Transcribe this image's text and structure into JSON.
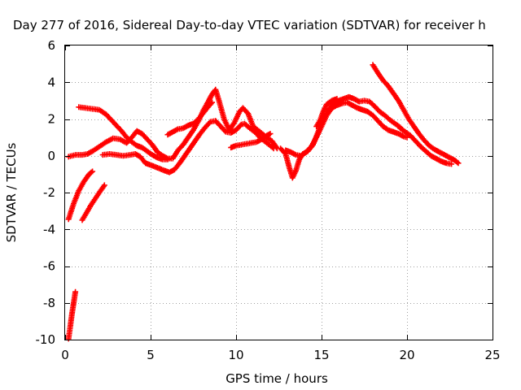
{
  "chart_data": {
    "type": "scatter",
    "title": "Day 277 of 2016, Sidereal Day-to-day VTEC variation (SDTVAR) for receiver h",
    "xlabel": "GPS time / hours",
    "ylabel": "SDTVAR / TECUs",
    "xlim": [
      0,
      25
    ],
    "ylim": [
      -10,
      6
    ],
    "xticks": [
      0,
      5,
      10,
      15,
      20,
      25
    ],
    "yticks": [
      -10,
      -8,
      -6,
      -4,
      -2,
      0,
      2,
      4,
      6
    ],
    "grid": true,
    "legend": "none",
    "marker": "+",
    "series": [
      {
        "name": "trace-1",
        "color": "#ff0000",
        "points": [
          [
            0.2,
            -9.95
          ],
          [
            0.3,
            -9.3
          ],
          [
            0.4,
            -8.6
          ],
          [
            0.5,
            -8.0
          ],
          [
            0.6,
            -7.4
          ]
        ]
      },
      {
        "name": "trace-2",
        "color": "#ff0000",
        "points": [
          [
            0.2,
            -3.45
          ],
          [
            0.5,
            -2.6
          ],
          [
            0.8,
            -1.9
          ],
          [
            1.1,
            -1.4
          ],
          [
            1.4,
            -1.0
          ],
          [
            1.6,
            -0.85
          ]
        ]
      },
      {
        "name": "trace-3",
        "color": "#ff0000",
        "points": [
          [
            1.0,
            -3.5
          ],
          [
            1.5,
            -2.7
          ],
          [
            2.0,
            -2.0
          ],
          [
            2.3,
            -1.6
          ]
        ]
      },
      {
        "name": "trace-4",
        "color": "#ff0000",
        "points": [
          [
            0.2,
            -0.05
          ],
          [
            0.6,
            0.05
          ],
          [
            1.0,
            0.05
          ],
          [
            1.3,
            0.1
          ],
          [
            1.6,
            0.25
          ],
          [
            2.0,
            0.5
          ],
          [
            2.4,
            0.75
          ],
          [
            2.8,
            0.95
          ],
          [
            3.2,
            0.9
          ],
          [
            3.6,
            0.7
          ],
          [
            3.9,
            1.0
          ],
          [
            4.2,
            1.35
          ],
          [
            4.5,
            1.2
          ],
          [
            4.8,
            0.9
          ],
          [
            5.1,
            0.6
          ],
          [
            5.4,
            0.2
          ],
          [
            5.7,
            0.0
          ],
          [
            6.0,
            -0.15
          ],
          [
            6.3,
            -0.15
          ],
          [
            6.6,
            0.3
          ],
          [
            6.9,
            0.6
          ],
          [
            7.2,
            1.0
          ],
          [
            7.5,
            1.4
          ],
          [
            7.8,
            1.9
          ],
          [
            8.1,
            2.5
          ],
          [
            8.4,
            3.0
          ],
          [
            8.6,
            3.35
          ],
          [
            8.8,
            3.6
          ],
          [
            9.0,
            3.0
          ],
          [
            9.3,
            2.0
          ],
          [
            9.6,
            1.4
          ],
          [
            9.9,
            1.8
          ],
          [
            10.2,
            2.4
          ],
          [
            10.4,
            2.6
          ],
          [
            10.7,
            2.3
          ],
          [
            11.0,
            1.6
          ],
          [
            11.4,
            1.3
          ],
          [
            11.8,
            1.0
          ],
          [
            12.1,
            0.8
          ],
          [
            12.4,
            0.4
          ]
        ]
      },
      {
        "name": "trace-5",
        "color": "#ff0000",
        "points": [
          [
            0.8,
            2.65
          ],
          [
            1.2,
            2.6
          ],
          [
            1.6,
            2.55
          ],
          [
            2.0,
            2.5
          ],
          [
            2.4,
            2.25
          ],
          [
            2.7,
            1.95
          ],
          [
            3.0,
            1.65
          ],
          [
            3.3,
            1.35
          ],
          [
            3.6,
            1.0
          ],
          [
            3.9,
            0.75
          ],
          [
            4.2,
            0.55
          ],
          [
            4.5,
            0.45
          ],
          [
            4.8,
            0.25
          ],
          [
            5.1,
            0.05
          ],
          [
            5.4,
            -0.1
          ],
          [
            5.7,
            -0.2
          ],
          [
            6.0,
            -0.2
          ]
        ]
      },
      {
        "name": "trace-6",
        "color": "#ff0000",
        "points": [
          [
            2.2,
            0.05
          ],
          [
            2.6,
            0.1
          ],
          [
            3.0,
            0.05
          ],
          [
            3.4,
            0.0
          ],
          [
            3.8,
            0.05
          ],
          [
            4.1,
            0.1
          ],
          [
            4.4,
            -0.05
          ],
          [
            4.7,
            -0.4
          ],
          [
            5.0,
            -0.5
          ],
          [
            5.4,
            -0.65
          ],
          [
            5.8,
            -0.8
          ],
          [
            6.1,
            -0.9
          ],
          [
            6.4,
            -0.75
          ],
          [
            6.7,
            -0.4
          ],
          [
            7.0,
            0.0
          ],
          [
            7.3,
            0.4
          ],
          [
            7.6,
            0.8
          ],
          [
            7.9,
            1.2
          ],
          [
            8.2,
            1.55
          ],
          [
            8.5,
            1.85
          ],
          [
            8.8,
            1.9
          ],
          [
            9.1,
            1.6
          ],
          [
            9.4,
            1.3
          ],
          [
            9.7,
            1.25
          ],
          [
            10.0,
            1.4
          ],
          [
            10.3,
            1.7
          ],
          [
            10.5,
            1.75
          ],
          [
            10.8,
            1.5
          ],
          [
            11.1,
            1.3
          ],
          [
            11.4,
            1.0
          ],
          [
            11.8,
            0.7
          ],
          [
            12.2,
            0.4
          ]
        ]
      },
      {
        "name": "trace-7",
        "color": "#ff0000",
        "points": [
          [
            6.0,
            1.15
          ],
          [
            6.3,
            1.3
          ],
          [
            6.6,
            1.45
          ],
          [
            6.9,
            1.5
          ],
          [
            7.2,
            1.65
          ],
          [
            7.5,
            1.75
          ],
          [
            7.8,
            2.0
          ],
          [
            8.1,
            2.35
          ],
          [
            8.4,
            2.7
          ],
          [
            8.6,
            2.9
          ]
        ]
      },
      {
        "name": "trace-8",
        "color": "#ff0000",
        "points": [
          [
            9.7,
            0.45
          ],
          [
            10.0,
            0.55
          ],
          [
            10.3,
            0.6
          ],
          [
            10.6,
            0.65
          ],
          [
            10.9,
            0.7
          ],
          [
            11.2,
            0.75
          ],
          [
            11.5,
            0.9
          ],
          [
            11.8,
            1.1
          ],
          [
            12.0,
            1.2
          ]
        ]
      },
      {
        "name": "trace-9",
        "color": "#ff0000",
        "points": [
          [
            12.6,
            0.4
          ],
          [
            12.9,
            0.1
          ],
          [
            13.1,
            -0.6
          ],
          [
            13.3,
            -1.2
          ],
          [
            13.5,
            -0.8
          ],
          [
            13.7,
            -0.2
          ],
          [
            13.9,
            0.1
          ],
          [
            14.2,
            0.25
          ],
          [
            14.5,
            0.6
          ],
          [
            14.8,
            1.3
          ],
          [
            15.1,
            2.0
          ],
          [
            15.4,
            2.5
          ],
          [
            15.7,
            2.85
          ],
          [
            16.0,
            3.0
          ],
          [
            16.3,
            3.1
          ],
          [
            16.6,
            3.2
          ],
          [
            16.9,
            3.1
          ],
          [
            17.2,
            2.95
          ],
          [
            17.5,
            3.0
          ],
          [
            17.8,
            2.95
          ],
          [
            18.1,
            2.7
          ],
          [
            18.4,
            2.4
          ],
          [
            18.7,
            2.2
          ],
          [
            19.0,
            1.95
          ],
          [
            19.3,
            1.75
          ],
          [
            19.6,
            1.55
          ]
        ]
      },
      {
        "name": "trace-10",
        "color": "#ff0000",
        "points": [
          [
            12.9,
            0.3
          ],
          [
            13.2,
            0.2
          ],
          [
            13.5,
            0.05
          ],
          [
            13.8,
            0.0
          ],
          [
            14.1,
            0.2
          ],
          [
            14.4,
            0.5
          ],
          [
            14.7,
            1.0
          ],
          [
            15.0,
            1.6
          ],
          [
            15.3,
            2.2
          ],
          [
            15.6,
            2.6
          ],
          [
            15.9,
            2.75
          ],
          [
            16.2,
            2.85
          ],
          [
            16.5,
            2.9
          ],
          [
            16.8,
            2.75
          ],
          [
            17.1,
            2.6
          ],
          [
            17.4,
            2.5
          ],
          [
            17.7,
            2.4
          ],
          [
            18.0,
            2.2
          ],
          [
            18.3,
            1.9
          ],
          [
            18.6,
            1.6
          ],
          [
            18.9,
            1.4
          ],
          [
            19.2,
            1.3
          ],
          [
            19.5,
            1.2
          ],
          [
            19.8,
            1.05
          ],
          [
            20.0,
            1.0
          ]
        ]
      },
      {
        "name": "trace-11",
        "color": "#ff0000",
        "points": [
          [
            18.0,
            4.95
          ],
          [
            18.3,
            4.5
          ],
          [
            18.6,
            4.1
          ],
          [
            18.9,
            3.8
          ],
          [
            19.2,
            3.4
          ],
          [
            19.5,
            3.0
          ],
          [
            19.8,
            2.5
          ],
          [
            20.1,
            2.0
          ],
          [
            20.4,
            1.6
          ],
          [
            20.7,
            1.2
          ],
          [
            21.0,
            0.85
          ],
          [
            21.3,
            0.55
          ],
          [
            21.6,
            0.35
          ],
          [
            21.9,
            0.2
          ],
          [
            22.2,
            0.05
          ],
          [
            22.5,
            -0.1
          ],
          [
            22.8,
            -0.25
          ],
          [
            23.0,
            -0.4
          ]
        ]
      },
      {
        "name": "trace-12",
        "color": "#ff0000",
        "points": [
          [
            19.6,
            1.5
          ],
          [
            19.9,
            1.3
          ],
          [
            20.2,
            1.1
          ],
          [
            20.5,
            0.8
          ],
          [
            20.8,
            0.5
          ],
          [
            21.1,
            0.25
          ],
          [
            21.4,
            0.0
          ],
          [
            21.7,
            -0.15
          ],
          [
            22.0,
            -0.3
          ],
          [
            22.3,
            -0.4
          ],
          [
            22.6,
            -0.45
          ]
        ]
      },
      {
        "name": "trace-13",
        "color": "#ff0000",
        "points": [
          [
            14.7,
            1.6
          ],
          [
            14.9,
            1.9
          ],
          [
            15.1,
            2.4
          ],
          [
            15.3,
            2.8
          ],
          [
            15.6,
            3.0
          ],
          [
            15.9,
            3.1
          ]
        ]
      }
    ]
  }
}
